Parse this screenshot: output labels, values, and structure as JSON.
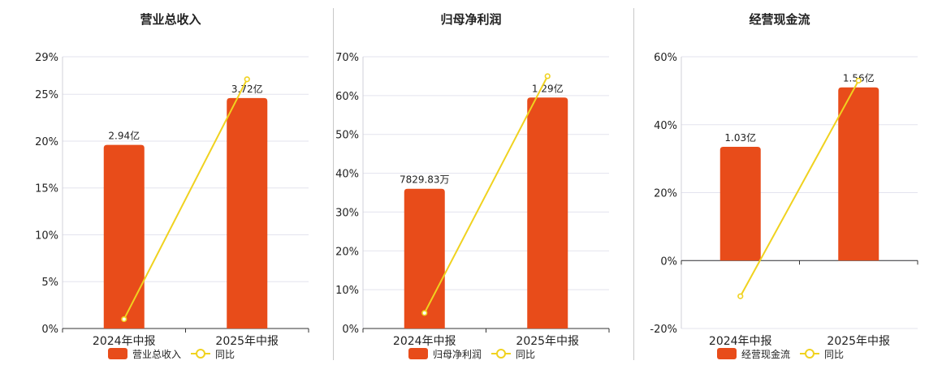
{
  "colors": {
    "bar": "#e84c1a",
    "line": "#f0d21f",
    "grid": "#e3e3ee",
    "axis": "#333333",
    "text": "#222222"
  },
  "chart_data": [
    {
      "type": "bar",
      "title": "营业总收入",
      "categories": [
        "2024年中报",
        "2025年中报"
      ],
      "series": [
        {
          "name": "营业总收入",
          "type": "bar",
          "values": [
            19.6,
            24.6
          ],
          "labels": [
            "2.94亿",
            "3.72亿"
          ]
        },
        {
          "name": "同比",
          "type": "line",
          "values": [
            1.0,
            26.6
          ]
        }
      ],
      "ylim": [
        0,
        29
      ],
      "yticks": [
        "0%",
        "5%",
        "10%",
        "15%",
        "20%",
        "25%",
        "29%"
      ],
      "ytick_values": [
        0,
        5,
        10,
        15,
        20,
        25,
        29
      ],
      "grid": true,
      "legend": "bottom"
    },
    {
      "type": "bar",
      "title": "归母净利润",
      "categories": [
        "2024年中报",
        "2025年中报"
      ],
      "series": [
        {
          "name": "归母净利润",
          "type": "bar",
          "values": [
            36,
            59.5
          ],
          "labels": [
            "7829.83万",
            "1.29亿"
          ]
        },
        {
          "name": "同比",
          "type": "line",
          "values": [
            4,
            65
          ]
        }
      ],
      "ylim": [
        0,
        70
      ],
      "yticks": [
        "0%",
        "10%",
        "20%",
        "30%",
        "40%",
        "50%",
        "60%",
        "70%"
      ],
      "ytick_values": [
        0,
        10,
        20,
        30,
        40,
        50,
        60,
        70
      ],
      "grid": true,
      "legend": "bottom"
    },
    {
      "type": "bar",
      "title": "经营现金流",
      "categories": [
        "2024年中报",
        "2025年中报"
      ],
      "series": [
        {
          "name": "经营现金流",
          "type": "bar",
          "values": [
            33.5,
            51
          ],
          "labels": [
            "1.03亿",
            "1.56亿"
          ]
        },
        {
          "name": "同比",
          "type": "line",
          "values": [
            -10.5,
            53
          ]
        }
      ],
      "ylim": [
        -20,
        60
      ],
      "yticks": [
        "-20%",
        "0%",
        "20%",
        "40%",
        "60%"
      ],
      "ytick_values": [
        -20,
        0,
        20,
        40,
        60
      ],
      "grid": true,
      "legend": "bottom"
    }
  ]
}
